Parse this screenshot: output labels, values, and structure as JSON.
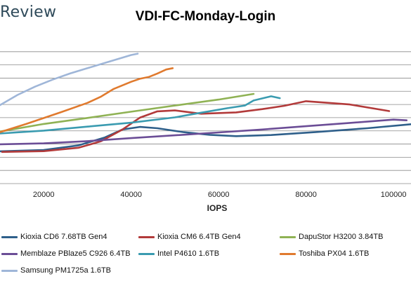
{
  "header": {
    "brand": "Review",
    "title": "VDI-FC-Monday-Login"
  },
  "chart_data": {
    "type": "line",
    "title": "VDI-FC-Monday-Login",
    "xlabel": "IOPS",
    "ylabel": "",
    "xlim": [
      10000,
      104000
    ],
    "ylim": [
      0,
      1100
    ],
    "x_ticks": [
      20000,
      40000,
      60000,
      80000,
      100000
    ],
    "x_tick_labels": [
      "20000",
      "40000",
      "60000",
      "80000",
      "100000"
    ],
    "grid": "horizontal",
    "legend_position": "bottom",
    "series": [
      {
        "name": "Kioxia CD6 7.68TB Gen4",
        "color": "#2e5f8a",
        "points": [
          [
            10000,
            245
          ],
          [
            20000,
            255
          ],
          [
            28000,
            290
          ],
          [
            34000,
            350
          ],
          [
            38000,
            410
          ],
          [
            42000,
            430
          ],
          [
            46000,
            420
          ],
          [
            52000,
            390
          ],
          [
            58000,
            370
          ],
          [
            64000,
            360
          ],
          [
            72000,
            368
          ],
          [
            82000,
            390
          ],
          [
            94000,
            420
          ],
          [
            104000,
            450
          ]
        ]
      },
      {
        "name": "Kioxia CM6 6.4TB Gen4",
        "color": "#b23a3a",
        "points": [
          [
            10500,
            240
          ],
          [
            20000,
            246
          ],
          [
            28000,
            272
          ],
          [
            33000,
            320
          ],
          [
            38000,
            410
          ],
          [
            42000,
            500
          ],
          [
            46000,
            548
          ],
          [
            50000,
            555
          ],
          [
            56000,
            530
          ],
          [
            64000,
            540
          ],
          [
            70000,
            565
          ],
          [
            75000,
            590
          ],
          [
            80000,
            625
          ],
          [
            90000,
            600
          ],
          [
            99000,
            550
          ]
        ]
      },
      {
        "name": "DapuStor H3200 3.84TB",
        "color": "#8fb254",
        "points": [
          [
            10000,
            395
          ],
          [
            20000,
            452
          ],
          [
            30000,
            498
          ],
          [
            40000,
            545
          ],
          [
            50000,
            592
          ],
          [
            60000,
            637
          ],
          [
            68000,
            680
          ]
        ]
      },
      {
        "name": "Memblaze PBlaze5 C926 6.4TB",
        "color": "#6b4d96",
        "points": [
          [
            10000,
            298
          ],
          [
            20000,
            305
          ],
          [
            30000,
            322
          ],
          [
            40000,
            345
          ],
          [
            50000,
            366
          ],
          [
            60000,
            388
          ],
          [
            70000,
            410
          ],
          [
            80000,
            435
          ],
          [
            90000,
            460
          ],
          [
            100000,
            485
          ],
          [
            103000,
            480
          ]
        ]
      },
      {
        "name": "Intel P4610 1.6TB",
        "color": "#3a9bb0",
        "points": [
          [
            10000,
            380
          ],
          [
            20000,
            402
          ],
          [
            30000,
            432
          ],
          [
            40000,
            462
          ],
          [
            50000,
            502
          ],
          [
            56000,
            538
          ],
          [
            62000,
            572
          ],
          [
            66000,
            592
          ],
          [
            68000,
            630
          ],
          [
            72000,
            662
          ],
          [
            74000,
            648
          ]
        ]
      },
      {
        "name": "Toshiba PX04 1.6TB",
        "color": "#e07a2e",
        "points": [
          [
            10000,
            390
          ],
          [
            16000,
            452
          ],
          [
            24000,
            542
          ],
          [
            30000,
            612
          ],
          [
            33000,
            658
          ],
          [
            36000,
            718
          ],
          [
            40000,
            772
          ],
          [
            42000,
            795
          ],
          [
            44000,
            808
          ],
          [
            46000,
            835
          ],
          [
            48000,
            865
          ],
          [
            49500,
            875
          ]
        ]
      },
      {
        "name": "Samsung PM1725a 1.6TB",
        "color": "#9fb6d8",
        "points": [
          [
            10000,
            595
          ],
          [
            14000,
            672
          ],
          [
            18000,
            735
          ],
          [
            22000,
            788
          ],
          [
            26000,
            835
          ],
          [
            30000,
            875
          ],
          [
            34000,
            915
          ],
          [
            38000,
            955
          ],
          [
            40000,
            975
          ],
          [
            41500,
            985
          ]
        ]
      }
    ]
  }
}
